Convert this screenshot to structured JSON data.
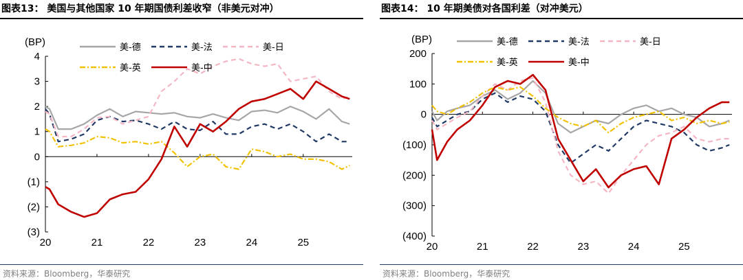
{
  "source": "资料来源：Bloomberg，华泰研究",
  "colors": {
    "us_de": "#a6a6a6",
    "us_fr": "#1f3864",
    "us_jp": "#f4b6c2",
    "us_uk": "#f2c100",
    "us_cn": "#c00000"
  },
  "chart_data": [
    {
      "type": "line",
      "title": "图表13：  美国与其他国家 10 年期国债利差收窄（非美元对冲）",
      "ylabel": "(BP)",
      "ylim": [
        -3,
        4
      ],
      "yticks": [
        4,
        3,
        2,
        1,
        0,
        -1,
        -2,
        -3
      ],
      "ytick_labels": [
        "4",
        "3",
        "2",
        "1",
        "0",
        "(1)",
        "(2)",
        "(3)"
      ],
      "xlim": [
        2020.0,
        2025.95
      ],
      "xticks": [
        2020,
        2021,
        2022,
        2023,
        2024,
        2025
      ],
      "xtick_labels": [
        "20",
        "21",
        "22",
        "23",
        "24",
        "25"
      ],
      "legend_rows": [
        [
          "us_de",
          "us_fr",
          "us_jp"
        ],
        [
          "us_uk",
          "us_cn"
        ]
      ],
      "series": [
        {
          "key": "us_de",
          "name": "美-德",
          "dash": "solid",
          "x": [
            2020,
            2020.08,
            2020.25,
            2020.5,
            2020.75,
            2021,
            2021.25,
            2021.5,
            2021.75,
            2022,
            2022.25,
            2022.5,
            2022.75,
            2023,
            2023.25,
            2023.5,
            2023.75,
            2024,
            2024.25,
            2024.5,
            2024.75,
            2025,
            2025.25,
            2025.5,
            2025.75,
            2025.9
          ],
          "values": [
            2.0,
            1.9,
            1.1,
            1.1,
            1.3,
            1.65,
            1.9,
            1.6,
            1.8,
            1.75,
            1.7,
            1.75,
            1.6,
            1.55,
            1.7,
            1.55,
            1.45,
            1.8,
            1.85,
            1.75,
            2.0,
            1.8,
            1.5,
            1.9,
            1.4,
            1.3
          ]
        },
        {
          "key": "us_fr",
          "name": "美-法",
          "dash": "dashed",
          "x": [
            2020,
            2020.08,
            2020.25,
            2020.5,
            2020.75,
            2021,
            2021.25,
            2021.5,
            2021.75,
            2022,
            2022.25,
            2022.5,
            2022.75,
            2023,
            2023.25,
            2023.5,
            2023.75,
            2024,
            2024.25,
            2024.5,
            2024.75,
            2025,
            2025.25,
            2025.5,
            2025.75,
            2025.9
          ],
          "values": [
            1.9,
            1.7,
            0.6,
            0.7,
            0.9,
            1.45,
            1.6,
            1.4,
            1.45,
            1.3,
            1.1,
            1.4,
            1.1,
            1.05,
            1.4,
            0.9,
            0.9,
            1.2,
            1.3,
            1.1,
            1.3,
            1.0,
            0.6,
            0.9,
            0.6,
            0.6
          ]
        },
        {
          "key": "us_jp",
          "name": "美-日",
          "dash": "dashed",
          "x": [
            2020,
            2020.08,
            2020.25,
            2020.5,
            2020.75,
            2021,
            2021.25,
            2021.5,
            2021.75,
            2022,
            2022.25,
            2022.5,
            2022.75,
            2023,
            2023.25,
            2023.5,
            2023.75,
            2024,
            2024.25,
            2024.5,
            2024.75,
            2025,
            2025.25,
            2025.5,
            2025.75,
            2025.9
          ],
          "values": [
            1.8,
            1.7,
            0.8,
            0.8,
            1.1,
            1.55,
            1.6,
            1.3,
            1.45,
            1.6,
            2.6,
            3.0,
            3.5,
            3.3,
            3.6,
            3.8,
            3.9,
            3.7,
            3.6,
            3.7,
            3.0,
            3.1,
            3.2,
            2.6,
            2.3,
            2.4
          ]
        },
        {
          "key": "us_uk",
          "name": "美-英",
          "dash": "dashdot",
          "x": [
            2020,
            2020.08,
            2020.25,
            2020.5,
            2020.75,
            2021,
            2021.25,
            2021.5,
            2021.75,
            2022,
            2022.25,
            2022.5,
            2022.75,
            2023,
            2023.25,
            2023.5,
            2023.75,
            2024,
            2024.25,
            2024.5,
            2024.75,
            2025,
            2025.25,
            2025.5,
            2025.75,
            2025.9
          ],
          "values": [
            1.1,
            1.0,
            0.4,
            0.45,
            0.55,
            0.8,
            0.75,
            0.55,
            0.6,
            0.5,
            0.6,
            0.15,
            -0.4,
            0.0,
            0.1,
            -0.4,
            -0.5,
            0.3,
            0.2,
            0.0,
            0.1,
            -0.1,
            -0.1,
            -0.2,
            -0.5,
            -0.35
          ]
        },
        {
          "key": "us_cn",
          "name": "美-中",
          "dash": "solid",
          "x": [
            2020,
            2020.08,
            2020.25,
            2020.5,
            2020.75,
            2021,
            2021.25,
            2021.5,
            2021.75,
            2022,
            2022.25,
            2022.5,
            2022.75,
            2023,
            2023.25,
            2023.5,
            2023.75,
            2024,
            2024.25,
            2024.5,
            2024.75,
            2025,
            2025.25,
            2025.5,
            2025.75,
            2025.9
          ],
          "values": [
            -1.2,
            -1.3,
            -1.9,
            -2.2,
            -2.4,
            -2.25,
            -1.7,
            -1.5,
            -1.4,
            -0.9,
            -0.1,
            1.2,
            0.4,
            1.3,
            1.0,
            1.4,
            1.9,
            2.2,
            2.3,
            2.5,
            2.7,
            2.3,
            3.0,
            2.7,
            2.4,
            2.3
          ]
        }
      ]
    },
    {
      "type": "line",
      "title": "图表14：  10 年期美债对各国利差（对冲美元）",
      "ylabel": "(BP)",
      "ylim": [
        -400,
        200
      ],
      "yticks": [
        200,
        100,
        0,
        -100,
        -200,
        -300,
        -400
      ],
      "ytick_labels": [
        "200",
        "100",
        "0",
        "(100)",
        "(200)",
        "(300)",
        "(400)"
      ],
      "xlim": [
        2020.0,
        2025.95
      ],
      "xticks": [
        2020,
        2021,
        2022,
        2023,
        2024,
        2025
      ],
      "xtick_labels": [
        "20",
        "21",
        "22",
        "23",
        "24",
        "25"
      ],
      "legend_rows": [
        [
          "us_de",
          "us_fr",
          "us_jp"
        ],
        [
          "us_uk",
          "us_cn"
        ]
      ],
      "series": [
        {
          "key": "us_de",
          "name": "美-德",
          "dash": "solid",
          "x": [
            2020,
            2020.1,
            2020.3,
            2020.5,
            2020.75,
            2021,
            2021.25,
            2021.5,
            2021.75,
            2022,
            2022.25,
            2022.5,
            2022.75,
            2023,
            2023.25,
            2023.5,
            2023.75,
            2024,
            2024.25,
            2024.5,
            2024.75,
            2025,
            2025.25,
            2025.5,
            2025.75,
            2025.9
          ],
          "values": [
            10,
            -20,
            10,
            20,
            30,
            60,
            80,
            50,
            70,
            110,
            70,
            -30,
            -60,
            -40,
            -20,
            -30,
            0,
            20,
            30,
            10,
            20,
            0,
            -10,
            -40,
            -30,
            -20
          ]
        },
        {
          "key": "us_fr",
          "name": "美-法",
          "dash": "dashed",
          "x": [
            2020,
            2020.1,
            2020.3,
            2020.5,
            2020.75,
            2021,
            2021.25,
            2021.5,
            2021.75,
            2022,
            2022.25,
            2022.5,
            2022.75,
            2023,
            2023.25,
            2023.5,
            2023.75,
            2024,
            2024.25,
            2024.5,
            2024.75,
            2025,
            2025.25,
            2025.5,
            2025.75,
            2025.9
          ],
          "values": [
            -10,
            -40,
            -20,
            0,
            10,
            50,
            70,
            40,
            60,
            50,
            10,
            -100,
            -160,
            -130,
            -100,
            -120,
            -80,
            -40,
            -20,
            -30,
            -40,
            -60,
            -100,
            -120,
            -110,
            -100
          ]
        },
        {
          "key": "us_jp",
          "name": "美-日",
          "dash": "dashed",
          "x": [
            2020,
            2020.1,
            2020.3,
            2020.5,
            2020.75,
            2021,
            2021.25,
            2021.5,
            2021.75,
            2022,
            2022.25,
            2022.5,
            2022.75,
            2023,
            2023.25,
            2023.5,
            2023.75,
            2024,
            2024.25,
            2024.5,
            2024.75,
            2025,
            2025.25,
            2025.5,
            2025.75,
            2025.9
          ],
          "values": [
            -20,
            -50,
            -30,
            -10,
            10,
            60,
            100,
            80,
            110,
            120,
            40,
            -120,
            -200,
            -230,
            -220,
            -260,
            -200,
            -150,
            -100,
            -70,
            -60,
            -40,
            -80,
            -90,
            -80,
            -80
          ]
        },
        {
          "key": "us_uk",
          "name": "美-英",
          "dash": "dashdot",
          "x": [
            2020,
            2020.1,
            2020.3,
            2020.5,
            2020.75,
            2021,
            2021.25,
            2021.5,
            2021.75,
            2022,
            2022.25,
            2022.5,
            2022.75,
            2023,
            2023.25,
            2023.5,
            2023.75,
            2024,
            2024.25,
            2024.5,
            2024.75,
            2025,
            2025.25,
            2025.5,
            2025.75,
            2025.9
          ],
          "values": [
            30,
            10,
            0,
            20,
            40,
            70,
            90,
            80,
            90,
            60,
            20,
            -10,
            -30,
            -40,
            -20,
            -60,
            -30,
            -10,
            0,
            10,
            -20,
            -10,
            -30,
            -20,
            -30,
            -25
          ]
        },
        {
          "key": "us_cn",
          "name": "美-中",
          "dash": "solid",
          "x": [
            2020,
            2020.1,
            2020.3,
            2020.5,
            2020.75,
            2021,
            2021.25,
            2021.5,
            2021.75,
            2022,
            2022.25,
            2022.5,
            2022.75,
            2023,
            2023.25,
            2023.5,
            2023.75,
            2024,
            2024.25,
            2024.5,
            2024.75,
            2025,
            2025.25,
            2025.5,
            2025.75,
            2025.9
          ],
          "values": [
            -50,
            -150,
            -90,
            -50,
            -20,
            30,
            90,
            110,
            100,
            130,
            80,
            -80,
            -150,
            -220,
            -180,
            -240,
            -200,
            -180,
            -170,
            -230,
            -80,
            -50,
            -10,
            20,
            40,
            40
          ]
        }
      ]
    }
  ]
}
